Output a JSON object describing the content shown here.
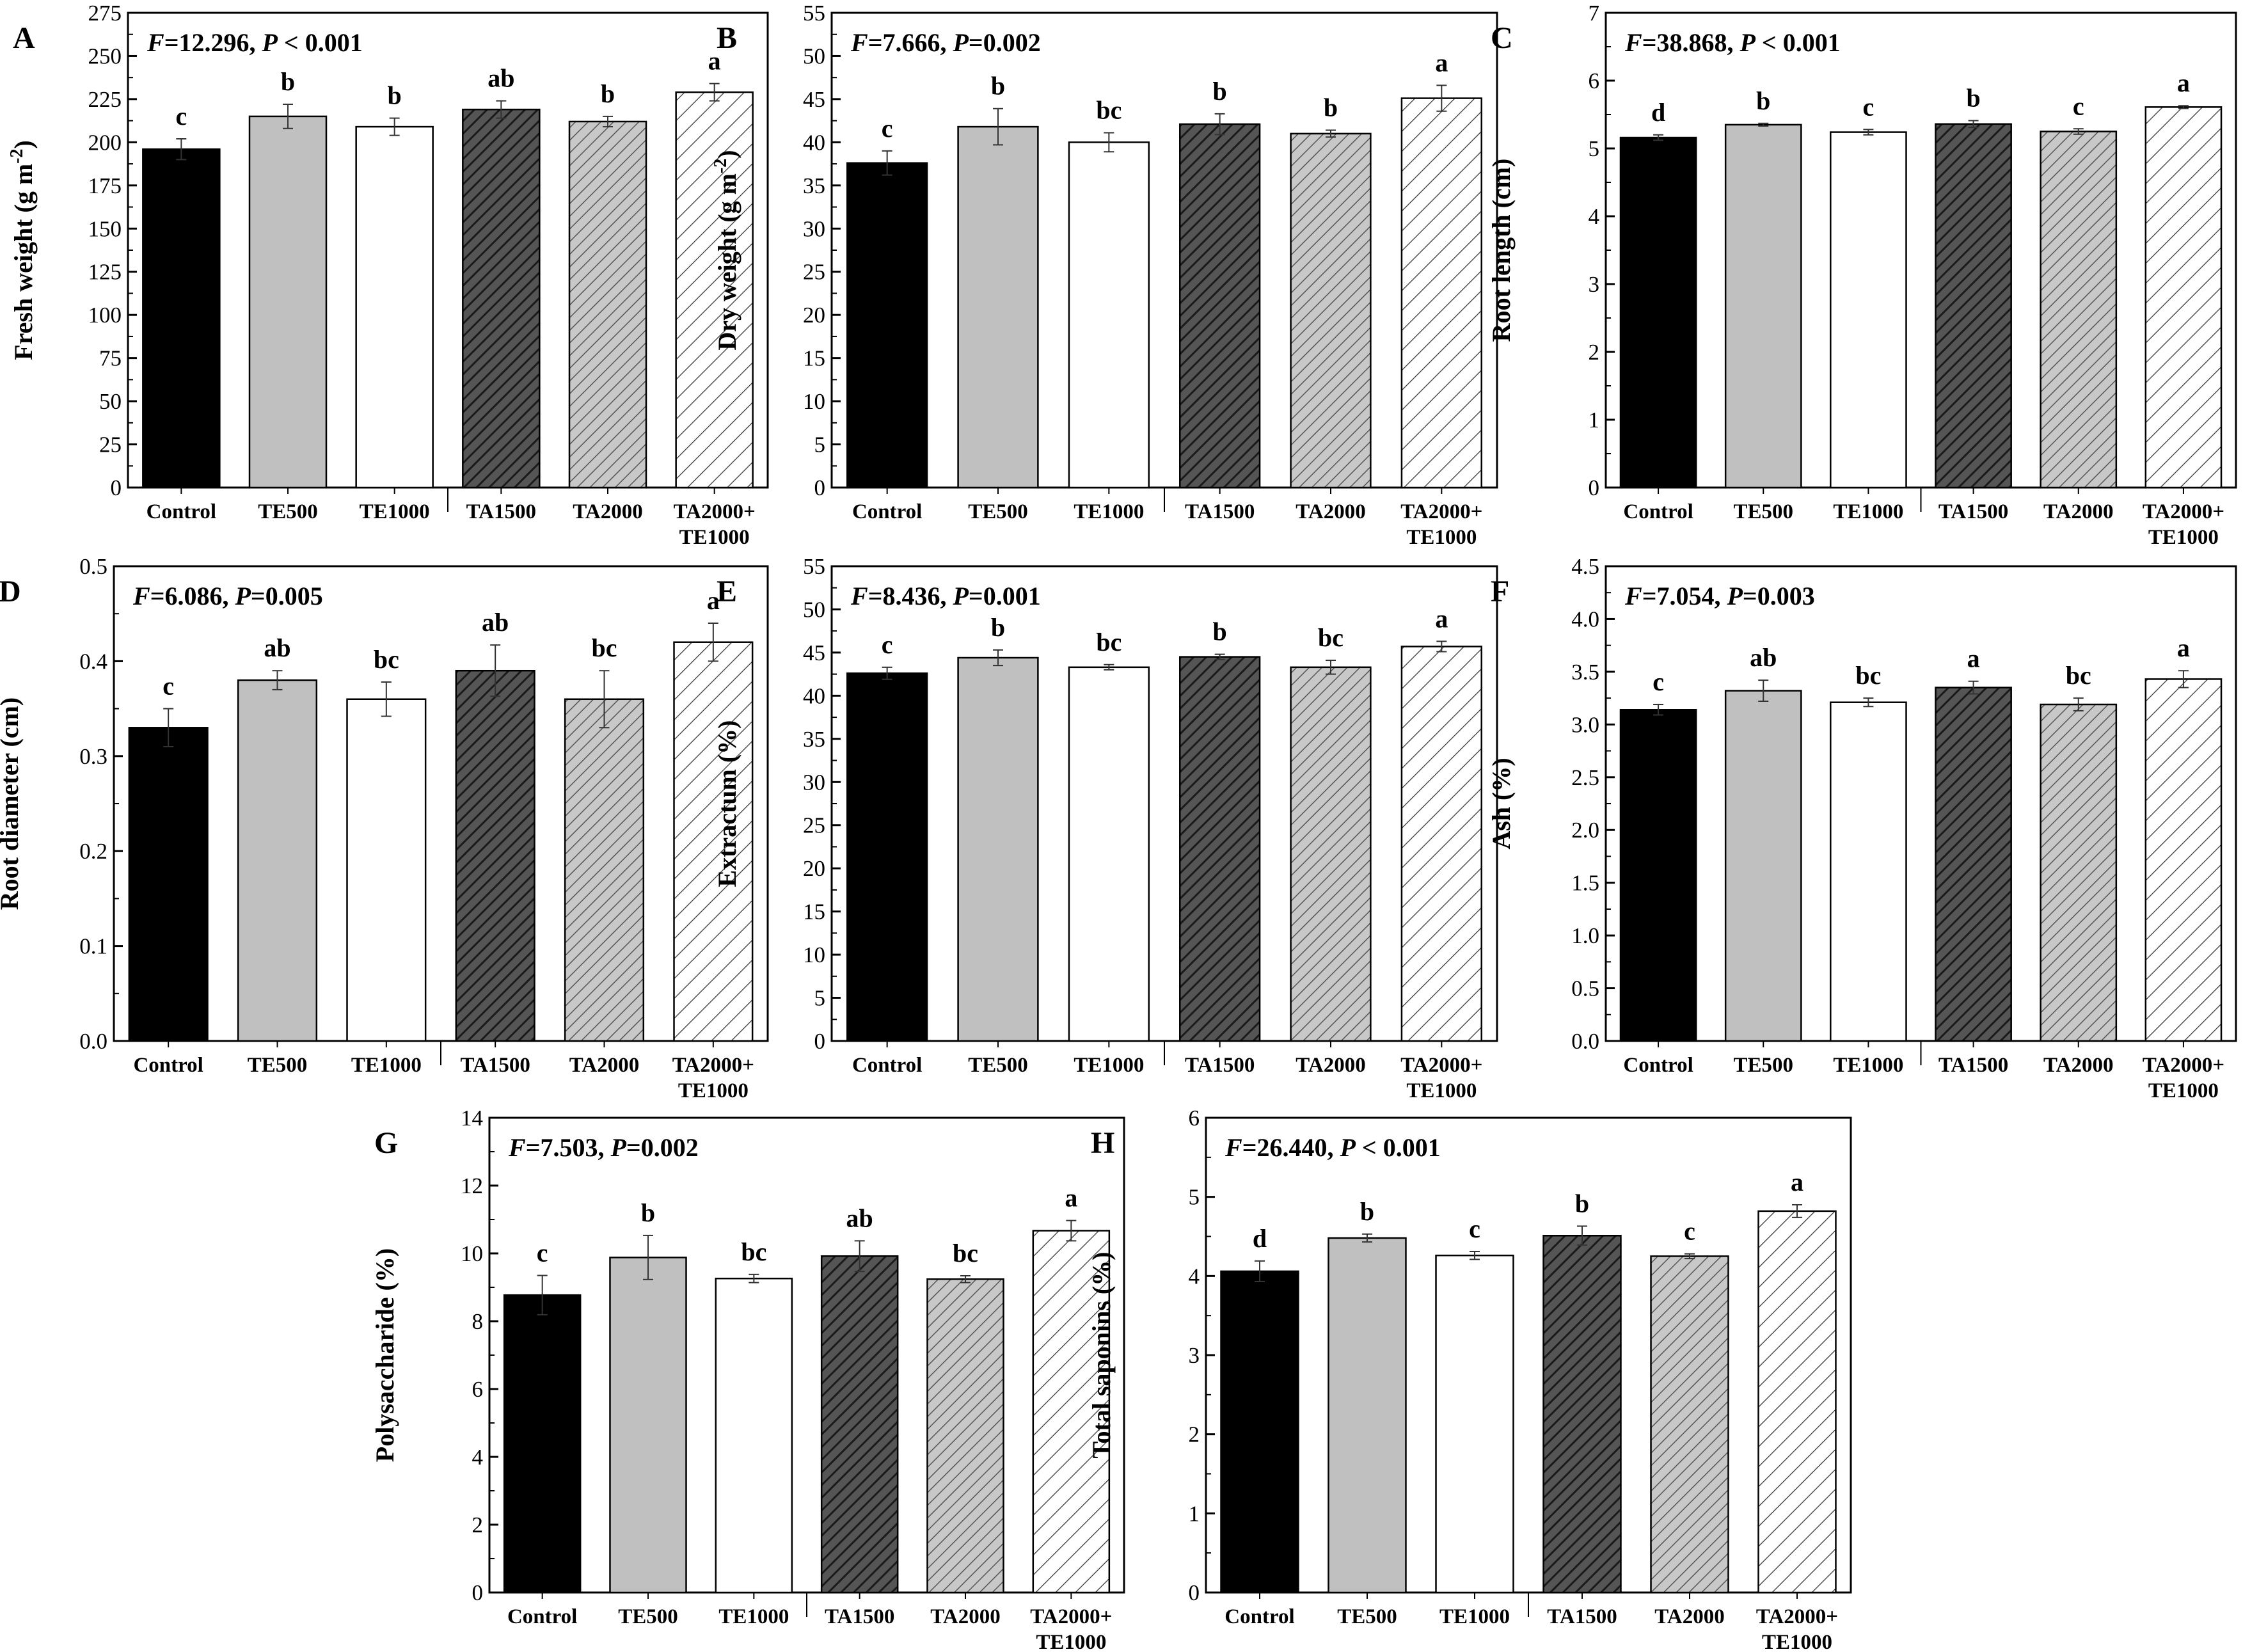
{
  "chart_data": [
    {
      "type": "bar",
      "panel_label": "A",
      "ylabel": "Fresh weight (g m",
      "ylabel_sup": "-2",
      "ylabel_end": ")",
      "stat_f": "12.296",
      "stat_p_op": "<",
      "stat_p": "0.001",
      "ylim": [
        0,
        275
      ],
      "yticks": [
        "0",
        "25",
        "50",
        "75",
        "100",
        "125",
        "150",
        "175",
        "200",
        "225",
        "250",
        "275"
      ],
      "categories": [
        "Control",
        "TE500",
        "TE1000",
        "TA1500",
        "TA2000",
        "TA2000+\nTE1000"
      ],
      "values": [
        196,
        215,
        209,
        219,
        212,
        229
      ],
      "errors": [
        6,
        7,
        5,
        5,
        3,
        5
      ],
      "letters": [
        "c",
        "b",
        "b",
        "ab",
        "b",
        "a"
      ]
    },
    {
      "type": "bar",
      "panel_label": "B",
      "ylabel": "Dry weight (g m",
      "ylabel_sup": "-2",
      "ylabel_end": ")",
      "stat_f": "7.666",
      "stat_p_op": "=",
      "stat_p": "0.002",
      "ylim": [
        0,
        55
      ],
      "yticks": [
        "0",
        "5",
        "10",
        "15",
        "20",
        "25",
        "30",
        "35",
        "40",
        "45",
        "50",
        "55"
      ],
      "categories": [
        "Control",
        "TE500",
        "TE1000",
        "TA1500",
        "TA2000",
        "TA2000+\nTE1000"
      ],
      "values": [
        37.6,
        41.8,
        40.0,
        42.1,
        41.0,
        45.1
      ],
      "errors": [
        1.4,
        2.1,
        1.1,
        1.2,
        0.4,
        1.5
      ],
      "letters": [
        "c",
        "b",
        "bc",
        "b",
        "b",
        "a"
      ]
    },
    {
      "type": "bar",
      "panel_label": "C",
      "ylabel": "Root length (cm)",
      "stat_f": "38.868",
      "stat_p_op": "<",
      "stat_p": "0.001",
      "ylim": [
        0,
        7
      ],
      "yticks": [
        "0",
        "1",
        "2",
        "3",
        "4",
        "5",
        "6",
        "7"
      ],
      "categories": [
        "Control",
        "TE500",
        "TE1000",
        "TA1500",
        "TA2000",
        "TA2000+\nTE1000"
      ],
      "values": [
        5.16,
        5.35,
        5.24,
        5.36,
        5.25,
        5.61
      ],
      "errors": [
        0.04,
        0.02,
        0.04,
        0.05,
        0.04,
        0.02
      ],
      "letters": [
        "d",
        "b",
        "c",
        "b",
        "c",
        "a"
      ]
    },
    {
      "type": "bar",
      "panel_label": "D",
      "ylabel": "Root diameter (cm)",
      "stat_f": "6.086",
      "stat_p_op": "=",
      "stat_p": "0.005",
      "ylim": [
        0,
        0.5
      ],
      "yticks": [
        "0.0",
        "0.1",
        "0.2",
        "0.3",
        "0.4",
        "0.5"
      ],
      "categories": [
        "Control",
        "TE500",
        "TE1000",
        "TA1500",
        "TA2000",
        "TA2000+\nTE1000"
      ],
      "values": [
        0.33,
        0.38,
        0.36,
        0.39,
        0.36,
        0.42
      ],
      "errors": [
        0.02,
        0.01,
        0.018,
        0.027,
        0.03,
        0.02
      ],
      "letters": [
        "c",
        "ab",
        "bc",
        "ab",
        "bc",
        "a"
      ]
    },
    {
      "type": "bar",
      "panel_label": "E",
      "ylabel": "Extractum (%)",
      "stat_f": "8.436",
      "stat_p_op": "=",
      "stat_p": "0.001",
      "ylim": [
        0,
        55
      ],
      "yticks": [
        "0",
        "5",
        "10",
        "15",
        "20",
        "25",
        "30",
        "35",
        "40",
        "45",
        "50",
        "55"
      ],
      "categories": [
        "Control",
        "TE500",
        "TE1000",
        "TA1500",
        "TA2000",
        "TA2000+\nTE1000"
      ],
      "values": [
        42.6,
        44.4,
        43.3,
        44.5,
        43.3,
        45.7
      ],
      "errors": [
        0.7,
        0.9,
        0.3,
        0.3,
        0.8,
        0.6
      ],
      "letters": [
        "c",
        "b",
        "bc",
        "b",
        "bc",
        "a"
      ]
    },
    {
      "type": "bar",
      "panel_label": "F",
      "ylabel": "Ash (%)",
      "stat_f": "7.054",
      "stat_p_op": "=",
      "stat_p": "0.003",
      "ylim": [
        0,
        4.5
      ],
      "yticks": [
        "0.0",
        "0.5",
        "1.0",
        "1.5",
        "2.0",
        "2.5",
        "3.0",
        "3.5",
        "4.0",
        "4.5"
      ],
      "categories": [
        "Control",
        "TE500",
        "TE1000",
        "TA1500",
        "TA2000",
        "TA2000+\nTE1000"
      ],
      "values": [
        3.14,
        3.32,
        3.21,
        3.35,
        3.19,
        3.43
      ],
      "errors": [
        0.05,
        0.1,
        0.04,
        0.06,
        0.06,
        0.08
      ],
      "letters": [
        "c",
        "ab",
        "bc",
        "a",
        "bc",
        "a"
      ]
    },
    {
      "type": "bar",
      "panel_label": "G",
      "ylabel": "Polysaccharide (%)",
      "stat_f": "7.503",
      "stat_p_op": "=",
      "stat_p": "0.002",
      "ylim": [
        0,
        14
      ],
      "yticks": [
        "0",
        "2",
        "4",
        "6",
        "8",
        "10",
        "12",
        "14"
      ],
      "categories": [
        "Control",
        "TE500",
        "TE1000",
        "TA1500",
        "TA2000",
        "TA2000+\nTE1000"
      ],
      "values": [
        8.77,
        9.88,
        9.26,
        9.92,
        9.24,
        10.67
      ],
      "errors": [
        0.58,
        0.65,
        0.12,
        0.45,
        0.1,
        0.3
      ],
      "letters": [
        "c",
        "b",
        "bc",
        "ab",
        "bc",
        "a"
      ]
    },
    {
      "type": "bar",
      "panel_label": "H",
      "ylabel": "Total saponins (%)",
      "stat_f": "26.440",
      "stat_p_op": "<",
      "stat_p": "0.001",
      "ylim": [
        0,
        6
      ],
      "yticks": [
        "0",
        "1",
        "2",
        "3",
        "4",
        "5",
        "6"
      ],
      "categories": [
        "Control",
        "TE500",
        "TE1000",
        "TA1500",
        "TA2000",
        "TA2000+\nTE1000"
      ],
      "values": [
        4.06,
        4.48,
        4.26,
        4.51,
        4.25,
        4.82
      ],
      "errors": [
        0.13,
        0.05,
        0.05,
        0.12,
        0.03,
        0.08
      ],
      "letters": [
        "d",
        "b",
        "c",
        "b",
        "c",
        "a"
      ]
    }
  ],
  "bar_styles": [
    {
      "name": "Control",
      "fill": "#000000",
      "hatch": "none"
    },
    {
      "name": "TE500",
      "fill": "#c0c0c0",
      "hatch": "none"
    },
    {
      "name": "TE1000",
      "fill": "#ffffff",
      "hatch": "none"
    },
    {
      "name": "TA1500",
      "fill": "#555555",
      "hatch": "dense"
    },
    {
      "name": "TA2000",
      "fill": "#c0c0c0",
      "hatch": "dense"
    },
    {
      "name": "TA2000+TE1000",
      "fill": "#ffffff",
      "hatch": "sparse"
    }
  ]
}
